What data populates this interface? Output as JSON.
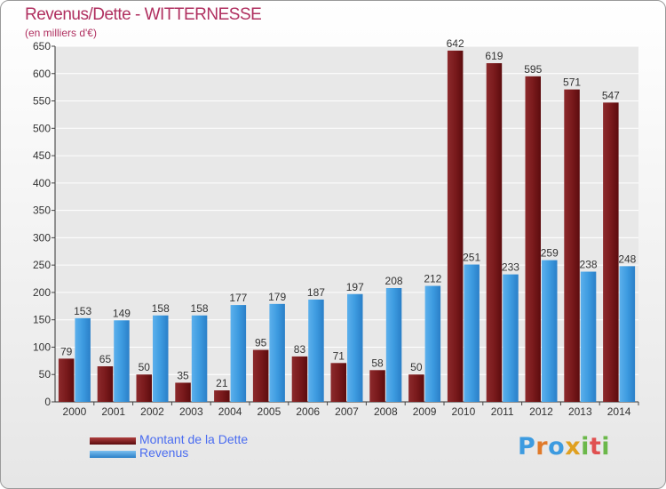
{
  "chart_data": {
    "type": "bar",
    "title": "Revenus/Dette - WITTERNESSE",
    "subtitle": "(en milliers d'€)",
    "categories": [
      "2000",
      "2001",
      "2002",
      "2003",
      "2004",
      "2005",
      "2006",
      "2007",
      "2008",
      "2009",
      "2010",
      "2011",
      "2012",
      "2013",
      "2014"
    ],
    "series": [
      {
        "name": "Montant de la Dette",
        "color": "#7a1a1c",
        "values": [
          79,
          65,
          50,
          35,
          21,
          95,
          83,
          71,
          58,
          50,
          642,
          619,
          595,
          571,
          547
        ]
      },
      {
        "name": "Revenus",
        "color": "#3d9be0",
        "values": [
          153,
          149,
          158,
          158,
          177,
          179,
          187,
          197,
          208,
          212,
          251,
          233,
          259,
          238,
          248
        ]
      }
    ],
    "ylim": [
      0,
      650
    ],
    "yticks": [
      0,
      50,
      100,
      150,
      200,
      250,
      300,
      350,
      400,
      450,
      500,
      550,
      600,
      650
    ],
    "grid": true,
    "legend_position": "bottom-left"
  },
  "logo": {
    "text": "Proxiti",
    "colors": [
      "#3d9be0",
      "#e07a2a",
      "#3d9be0",
      "#e0a020",
      "#6bb84a",
      "#e05050",
      "#6bb84a"
    ]
  }
}
